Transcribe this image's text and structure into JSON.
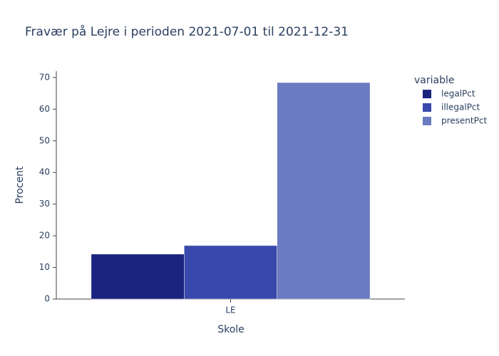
{
  "chart_data": {
    "type": "bar",
    "title": "Fravær på Lejre i perioden 2021-07-01 til 2021-12-31",
    "x_label": "Skole",
    "y_label": "Procent",
    "legend_title": "variable",
    "categories": [
      "LE"
    ],
    "series": [
      {
        "name": "legalPct",
        "color": "#1a237e",
        "values": [
          14.2
        ]
      },
      {
        "name": "illegalPct",
        "color": "#3949ab",
        "values": [
          16.9
        ]
      },
      {
        "name": "presentPct",
        "color": "#6b7bc1",
        "values": [
          68.4
        ]
      }
    ],
    "ylim": [
      0,
      72
    ],
    "yticks": [
      0,
      10,
      20,
      30,
      40,
      50,
      60,
      70
    ],
    "grid": false,
    "legend_position": "right"
  }
}
